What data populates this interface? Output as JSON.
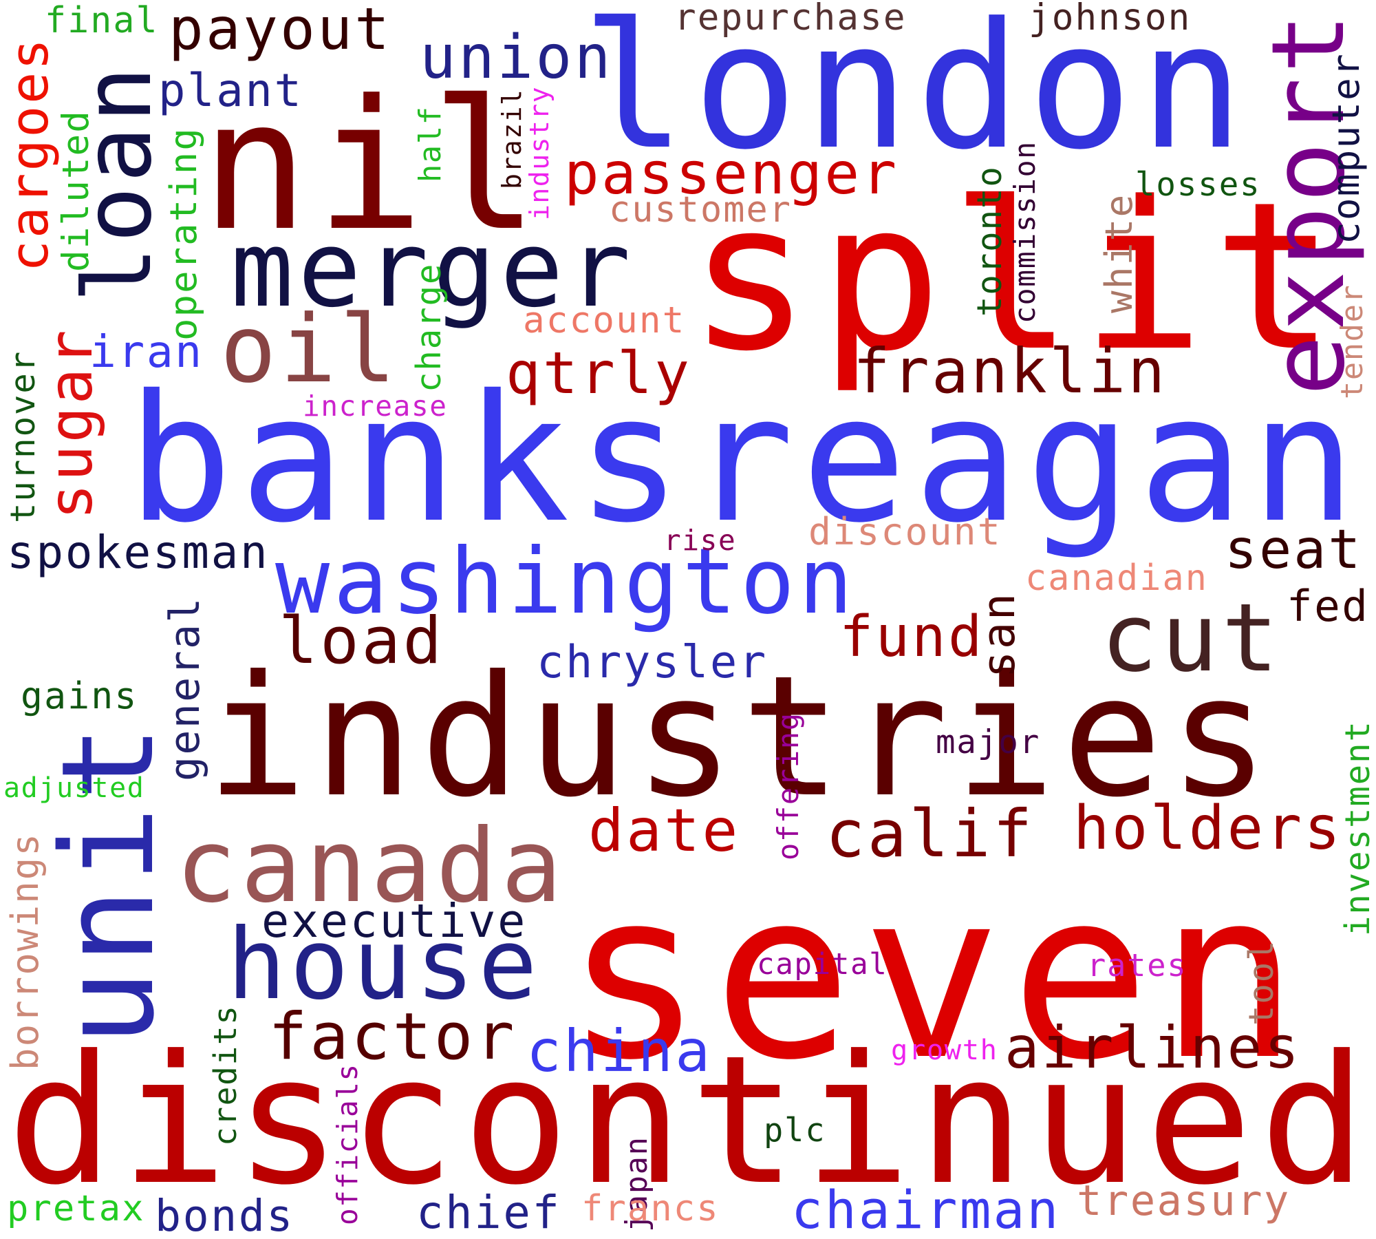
{
  "words": [
    {
      "id": "london",
      "text": "london",
      "color": "#3333dd"
    },
    {
      "id": "nil",
      "text": "nil",
      "color": "#770000"
    },
    {
      "id": "split",
      "text": "split",
      "color": "#dd0000"
    },
    {
      "id": "banksreagan",
      "text": "banksreagan",
      "color": "#3a3aee"
    },
    {
      "id": "industries",
      "text": "industries",
      "color": "#5a0000"
    },
    {
      "id": "seven",
      "text": "seven",
      "color": "#dd0000"
    },
    {
      "id": "discontinued",
      "text": "discontinued",
      "color": "#bb0000"
    },
    {
      "id": "unit",
      "text": "unit",
      "color": "#2a2aaa"
    },
    {
      "id": "merger",
      "text": "merger",
      "color": "#111144"
    },
    {
      "id": "loan",
      "text": "loan",
      "color": "#111144"
    },
    {
      "id": "export",
      "text": "export",
      "color": "#770088"
    },
    {
      "id": "washington",
      "text": "washington",
      "color": "#3a3aee"
    },
    {
      "id": "canada",
      "text": "canada",
      "color": "#995555"
    },
    {
      "id": "house",
      "text": "house",
      "color": "#222288"
    },
    {
      "id": "cut",
      "text": "cut",
      "color": "#442222"
    },
    {
      "id": "oil",
      "text": "oil",
      "color": "#884444"
    },
    {
      "id": "payout",
      "text": "payout",
      "color": "#330000"
    },
    {
      "id": "union",
      "text": "union",
      "color": "#222288"
    },
    {
      "id": "passenger",
      "text": "passenger",
      "color": "#cc0000"
    },
    {
      "id": "franklin",
      "text": "franklin",
      "color": "#660000"
    },
    {
      "id": "qtrly",
      "text": "qtrly",
      "color": "#aa0000"
    },
    {
      "id": "cargoes",
      "text": "cargoes",
      "color": "#ee1100"
    },
    {
      "id": "sugar",
      "text": "sugar",
      "color": "#dd1111"
    },
    {
      "id": "load",
      "text": "load",
      "color": "#550000"
    },
    {
      "id": "fund",
      "text": "fund",
      "color": "#990000"
    },
    {
      "id": "date",
      "text": "date",
      "color": "#bb0000"
    },
    {
      "id": "calif",
      "text": "calif",
      "color": "#770000"
    },
    {
      "id": "holders",
      "text": "holders",
      "color": "#990000"
    },
    {
      "id": "factor",
      "text": "factor",
      "color": "#550000"
    },
    {
      "id": "airlines",
      "text": "airlines",
      "color": "#660000"
    },
    {
      "id": "china",
      "text": "china",
      "color": "#3a3aee"
    },
    {
      "id": "executive",
      "text": "executive",
      "color": "#111144"
    },
    {
      "id": "chrysler",
      "text": "chrysler",
      "color": "#2a2aaa"
    },
    {
      "id": "spokesman",
      "text": "spokesman",
      "color": "#111144"
    },
    {
      "id": "seat",
      "text": "seat",
      "color": "#330000"
    },
    {
      "id": "san",
      "text": "san",
      "color": "#440000"
    },
    {
      "id": "fed",
      "text": "fed",
      "color": "#330000"
    },
    {
      "id": "iran",
      "text": "iran",
      "color": "#3a3aee"
    },
    {
      "id": "plant",
      "text": "plant",
      "color": "#222288"
    },
    {
      "id": "repurchase",
      "text": "repurchase",
      "color": "#553333"
    },
    {
      "id": "johnson",
      "text": "johnson",
      "color": "#442222"
    },
    {
      "id": "computer",
      "text": "computer",
      "color": "#111144"
    },
    {
      "id": "final",
      "text": "final",
      "color": "#22aa22"
    },
    {
      "id": "diluted",
      "text": "diluted",
      "color": "#22bb22"
    },
    {
      "id": "operating",
      "text": "operating",
      "color": "#22bb22"
    },
    {
      "id": "half",
      "text": "half",
      "color": "#22bb22"
    },
    {
      "id": "charge",
      "text": "charge",
      "color": "#22bb22"
    },
    {
      "id": "brazil",
      "text": "brazil",
      "color": "#330000"
    },
    {
      "id": "industry",
      "text": "industry",
      "color": "#ee22ee"
    },
    {
      "id": "customer",
      "text": "customer",
      "color": "#cc7766"
    },
    {
      "id": "account",
      "text": "account",
      "color": "#ee7766"
    },
    {
      "id": "increase",
      "text": "increase",
      "color": "#cc22cc"
    },
    {
      "id": "toronto",
      "text": "toronto",
      "color": "#115511"
    },
    {
      "id": "commission",
      "text": "commission",
      "color": "#330033"
    },
    {
      "id": "white",
      "text": "white",
      "color": "#aa7766"
    },
    {
      "id": "losses",
      "text": "losses",
      "color": "#115511"
    },
    {
      "id": "tender",
      "text": "tender",
      "color": "#cc8877"
    },
    {
      "id": "turnover",
      "text": "turnover",
      "color": "#115511"
    },
    {
      "id": "discount",
      "text": "discount",
      "color": "#dd8877"
    },
    {
      "id": "rise",
      "text": "rise",
      "color": "#880055"
    },
    {
      "id": "canadian",
      "text": "canadian",
      "color": "#ee8877"
    },
    {
      "id": "general",
      "text": "general",
      "color": "#222266"
    },
    {
      "id": "gains",
      "text": "gains",
      "color": "#115511"
    },
    {
      "id": "adjusted",
      "text": "adjusted",
      "color": "#22cc22"
    },
    {
      "id": "major",
      "text": "major",
      "color": "#440044"
    },
    {
      "id": "offering",
      "text": "offering",
      "color": "#990099"
    },
    {
      "id": "investment",
      "text": "investment",
      "color": "#22aa22"
    },
    {
      "id": "borrowings",
      "text": "borrowings",
      "color": "#cc8877"
    },
    {
      "id": "capital",
      "text": "capital",
      "color": "#990099"
    },
    {
      "id": "rates",
      "text": "rates",
      "color": "#cc22cc"
    },
    {
      "id": "tool",
      "text": "tool",
      "color": "#aa7766"
    },
    {
      "id": "growth",
      "text": "growth",
      "color": "#ee22ee"
    },
    {
      "id": "credits",
      "text": "credits",
      "color": "#115511"
    },
    {
      "id": "officials",
      "text": "officials",
      "color": "#990099"
    },
    {
      "id": "japan",
      "text": "japan",
      "color": "#550055"
    },
    {
      "id": "plc",
      "text": "plc",
      "color": "#114411"
    },
    {
      "id": "pretax",
      "text": "pretax",
      "color": "#22cc22"
    },
    {
      "id": "bonds",
      "text": "bonds",
      "color": "#222288"
    },
    {
      "id": "chief",
      "text": "chief",
      "color": "#222288"
    },
    {
      "id": "francs",
      "text": "francs",
      "color": "#ee8877"
    },
    {
      "id": "chairman",
      "text": "chairman",
      "color": "#3a3aee"
    },
    {
      "id": "treasury",
      "text": "treasury",
      "color": "#cc7766"
    }
  ]
}
